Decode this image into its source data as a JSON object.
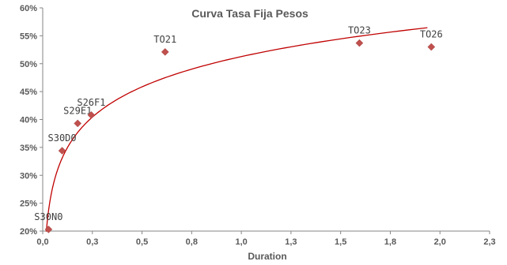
{
  "chart_data": {
    "type": "scatter",
    "title": "Curva Tasa Fija Pesos",
    "xlabel": "Duration",
    "ylabel": "",
    "xlim": [
      0.0,
      2.3
    ],
    "ylim": [
      20,
      60
    ],
    "x_ticks": [
      0.0,
      0.3,
      0.5,
      0.8,
      1.0,
      1.3,
      1.5,
      1.8,
      2.0,
      2.3
    ],
    "x_tick_labels": [
      "0,0",
      "0,3",
      "0,5",
      "0,8",
      "1,0",
      "1,3",
      "1,5",
      "1,8",
      "2,0",
      "2,3"
    ],
    "y_ticks": [
      20,
      25,
      30,
      35,
      40,
      45,
      50,
      55,
      60
    ],
    "y_tick_labels": [
      "20%",
      "25%",
      "30%",
      "35%",
      "40%",
      "45%",
      "50%",
      "55%",
      "60%"
    ],
    "points": [
      {
        "label": "S30N0",
        "x": 0.03,
        "y": 20.3
      },
      {
        "label": "S30D0",
        "x": 0.1,
        "y": 34.4
      },
      {
        "label": "S29E1",
        "x": 0.18,
        "y": 39.3
      },
      {
        "label": "S26F1",
        "x": 0.25,
        "y": 40.8
      },
      {
        "label": "TO21",
        "x": 0.63,
        "y": 52.1
      },
      {
        "label": "TO23",
        "x": 1.63,
        "y": 53.7
      },
      {
        "label": "TO26",
        "x": 2.0,
        "y": 53.0
      }
    ],
    "trendline": {
      "type": "logarithmic",
      "x_start": 0.015,
      "x_end": 1.98
    },
    "colors": {
      "marker": "#C0504D",
      "trendline": "#C00000",
      "text": "#595959"
    },
    "grid": false,
    "legend": "none"
  }
}
